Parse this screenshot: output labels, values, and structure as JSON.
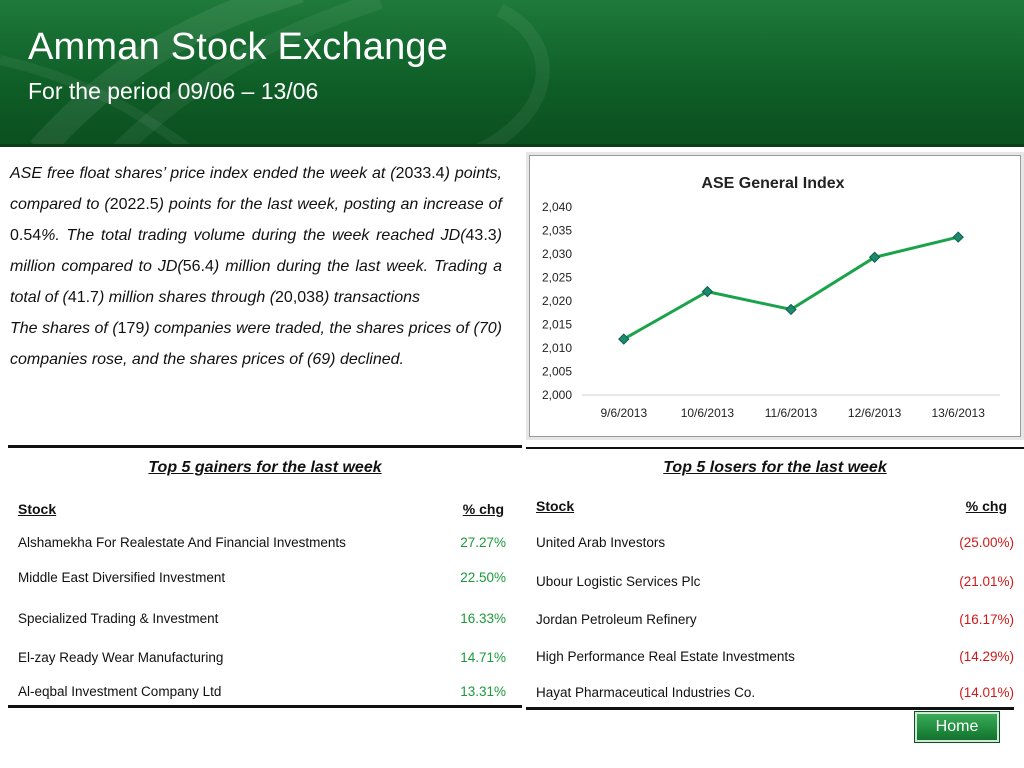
{
  "header": {
    "title": "Amman Stock Exchange",
    "subtitle": "For the period  09/06 –  13/06"
  },
  "summary": {
    "p1_a": "ASE free float shares’ price index ended the week at (",
    "p1_v1": "2033.4",
    "p1_b": ") points, compared to (",
    "p1_v2": "2022.5",
    "p1_c": ") points for the last week, posting an increase of ",
    "p1_v3": "0.54",
    "p1_d": "%. The total trading volume during the week reached JD(",
    "p1_v4": "43.3",
    "p1_e": ") million compared to JD(",
    "p1_v5": "56.4",
    "p1_f": ") million during the last week. Trading a total of (",
    "p1_v6": "41.7",
    "p1_g": ") million shares through (",
    "p1_v7": "20,038",
    "p1_h": ") transactions",
    "p2_a": "The shares of (",
    "p2_v1": "179",
    "p2_b": ") companies were traded, the shares prices of (70) companies rose, and the shares prices of (69) declined."
  },
  "chart_data": {
    "type": "line",
    "title": "ASE General Index",
    "categories": [
      "9/6/2013",
      "10/6/2013",
      "11/6/2013",
      "12/6/2013",
      "13/6/2013"
    ],
    "values": [
      2011.9,
      2022.0,
      2018.2,
      2029.3,
      2033.6
    ],
    "ylim": [
      2000,
      2040
    ],
    "yticks": [
      "2,000",
      "2,005",
      "2,010",
      "2,015",
      "2,020",
      "2,025",
      "2,030",
      "2,035",
      "2,040"
    ],
    "line_color": "#1aa34a",
    "marker_color": "#1c8a6e",
    "grid": false
  },
  "gainers": {
    "caption": "Top 5 gainers for the last week",
    "col_stock": "Stock",
    "col_chg": "% chg",
    "chg_color": "#1a9a3a",
    "rows": [
      {
        "name": "Alshamekha For Realestate And Financial Investments",
        "chg": "27.27%"
      },
      {
        "name": "Middle East Diversified Investment",
        "chg": "22.50%"
      },
      {
        "name": "Specialized Trading & Investment",
        "chg": "16.33%"
      },
      {
        "name": "El-zay Ready Wear Manufacturing",
        "chg": "14.71%"
      },
      {
        "name": "Al-eqbal Investment Company Ltd",
        "chg": "13.31%"
      }
    ]
  },
  "losers": {
    "caption": "Top 5 losers for the last week",
    "col_stock": "Stock",
    "col_chg": "% chg",
    "chg_color": "#d01818",
    "rows": [
      {
        "name": "United Arab Investors",
        "chg": "(25.00%)"
      },
      {
        "name": "Ubour Logistic Services Plc",
        "chg": "(21.01%)"
      },
      {
        "name": "Jordan Petroleum Refinery",
        "chg": "(16.17%)"
      },
      {
        "name": "High Performance Real Estate Investments",
        "chg": "(14.29%)"
      },
      {
        "name": "Hayat Pharmaceutical Industries Co.",
        "chg": "(14.01%)"
      }
    ]
  },
  "nav": {
    "home_label": "Home"
  }
}
